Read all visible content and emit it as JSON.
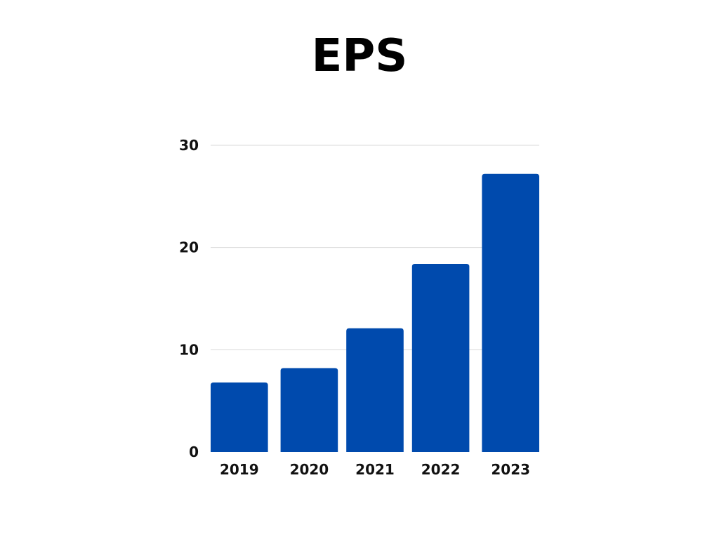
{
  "chart_data": {
    "type": "bar",
    "title": "EPS",
    "xlabel": "",
    "ylabel": "",
    "categories": [
      "2019",
      "2020",
      "2021",
      "2022",
      "2023"
    ],
    "values": [
      6.8,
      8.2,
      12.1,
      18.4,
      27.2
    ],
    "ylim": [
      0,
      30
    ],
    "yticks": [
      0,
      10,
      20,
      30
    ],
    "grid": true,
    "legend": "none",
    "bar_color": "#004AAD",
    "grid_color": "#D9D9D9"
  }
}
